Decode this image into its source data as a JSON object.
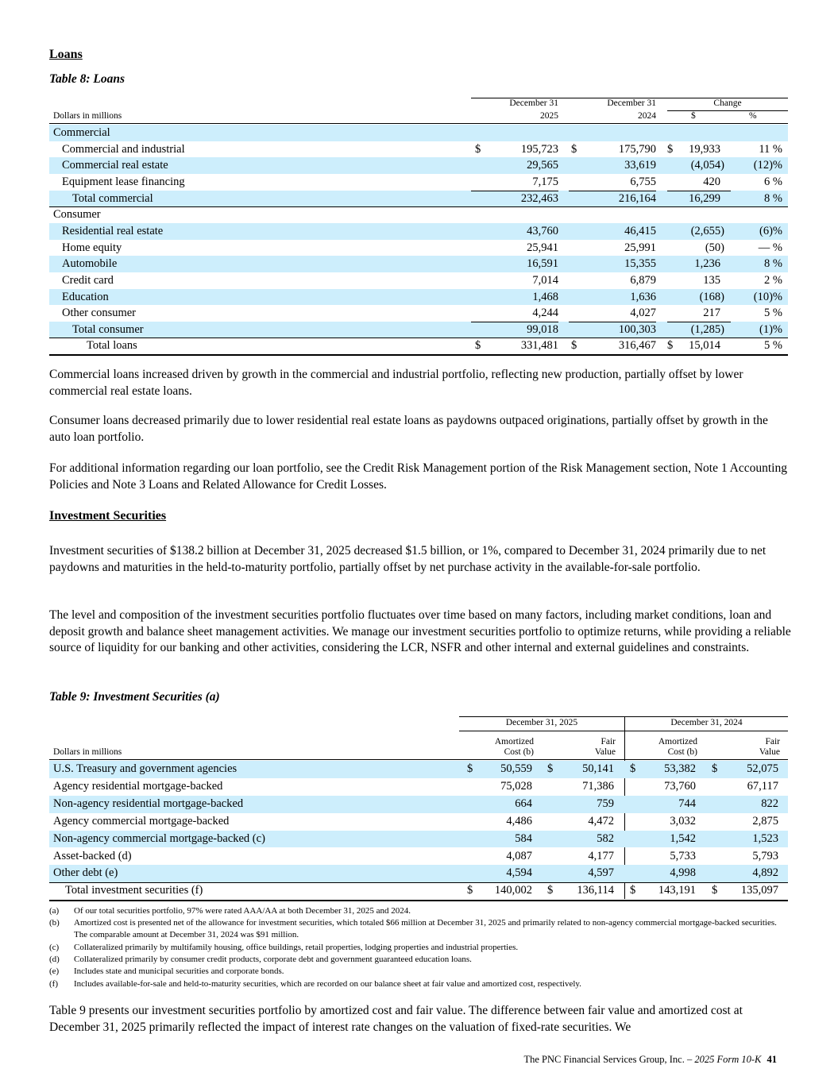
{
  "loans_heading": "Loans",
  "table8": {
    "title": "Table 8: Loans",
    "units": "Dollars in millions",
    "col_2025_top": "December 31",
    "col_2025_bottom": "2025",
    "col_2024_top": "December 31",
    "col_2024_bottom": "2024",
    "change": "Change",
    "change_dollar": "$",
    "change_pct": "%",
    "rows": [
      {
        "label": "Commercial",
        "indent": 0,
        "blue": true
      },
      {
        "label": "Commercial and industrial",
        "indent": 1,
        "d1": "$",
        "v1": "195,723",
        "d2": "$",
        "v2": "175,790",
        "d3": "$",
        "chg": "19,933",
        "pct": "11 %"
      },
      {
        "label": "Commercial real estate",
        "indent": 1,
        "blue": true,
        "v1": "29,565",
        "v2": "33,619",
        "chg": "(4,054)",
        "pct": "(12)%"
      },
      {
        "label": "Equipment lease financing",
        "indent": 1,
        "v1": "7,175",
        "v2": "6,755",
        "chg": "420",
        "pct": "6 %"
      },
      {
        "label": "Total commercial",
        "indent": 2,
        "blue": true,
        "v1": "232,463",
        "v2": "216,164",
        "chg": "16,299",
        "pct": "8 %",
        "topline": true
      },
      {
        "label": "Consumer",
        "indent": 0,
        "topline": true
      },
      {
        "label": "Residential real estate",
        "indent": 1,
        "blue": true,
        "v1": "43,760",
        "v2": "46,415",
        "chg": "(2,655)",
        "pct": "(6)%"
      },
      {
        "label": "Home equity",
        "indent": 1,
        "v1": "25,941",
        "v2": "25,991",
        "chg": "(50)",
        "pct": "— %"
      },
      {
        "label": "Automobile",
        "indent": 1,
        "blue": true,
        "v1": "16,591",
        "v2": "15,355",
        "chg": "1,236",
        "pct": "8 %"
      },
      {
        "label": "Credit card",
        "indent": 1,
        "v1": "7,014",
        "v2": "6,879",
        "chg": "135",
        "pct": "2 %"
      },
      {
        "label": "Education",
        "indent": 1,
        "blue": true,
        "v1": "1,468",
        "v2": "1,636",
        "chg": "(168)",
        "pct": "(10)%"
      },
      {
        "label": "Other consumer",
        "indent": 1,
        "v1": "4,244",
        "v2": "4,027",
        "chg": "217",
        "pct": "5 %"
      },
      {
        "label": "Total consumer",
        "indent": 2,
        "blue": true,
        "v1": "99,018",
        "v2": "100,303",
        "chg": "(1,285)",
        "pct": "(1)%",
        "topline": true
      },
      {
        "label": "Total loans",
        "indent": 3,
        "d1": "$",
        "v1": "331,481",
        "d2": "$",
        "v2": "316,467",
        "d3": "$",
        "chg": "15,014",
        "pct": "5 %",
        "topline": true,
        "bottom": true
      }
    ]
  },
  "paragraphs1": [
    "Commercial loans increased driven by growth in the commercial and industrial portfolio, reflecting new production, partially offset by lower commercial real estate loans.",
    "Consumer loans decreased primarily due to lower residential real estate loans as paydowns outpaced originations, partially offset by growth in the auto loan portfolio.",
    "For additional information regarding our loan portfolio, see the Credit Risk Management portion of the Risk Management section, Note 1 Accounting Policies and Note 3 Loans and Related Allowance for Credit Losses."
  ],
  "inv_heading": "Investment Securities",
  "paragraphs2": [
    "Investment securities of $138.2 billion at December 31, 2025 decreased $1.5 billion, or 1%, compared to December 31, 2024 primarily due to net paydowns and maturities in the held-to-maturity portfolio, partially offset by net purchase activity in the available-for-sale portfolio.",
    "The level and composition of the investment securities portfolio fluctuates over time based on many factors, including market conditions, loan and deposit growth and balance sheet management activities. We manage our investment securities portfolio to optimize returns, while providing a reliable source of liquidity for our banking and other activities, considering the LCR, NSFR and other internal and external guidelines and constraints."
  ],
  "table9": {
    "title": "Table 9: Investment Securities (a)",
    "units": "Dollars in millions",
    "group1": "December 31, 2025",
    "group2": "December 31, 2024",
    "amort1": "Amortized",
    "amort2": "Cost (b)",
    "fair1": "Fair",
    "fair2": "Value",
    "rows": [
      {
        "label": "U.S. Treasury and government agencies",
        "blue": true,
        "d": "$",
        "a1": "50,559",
        "f1": "50,141",
        "a2": "53,382",
        "f2": "52,075"
      },
      {
        "label": "Agency residential mortgage-backed",
        "a1": "75,028",
        "f1": "71,386",
        "a2": "73,760",
        "f2": "67,117"
      },
      {
        "label": "Non-agency residential mortgage-backed",
        "blue": true,
        "a1": "664",
        "f1": "759",
        "a2": "744",
        "f2": "822"
      },
      {
        "label": "Agency commercial mortgage-backed",
        "a1": "4,486",
        "f1": "4,472",
        "a2": "3,032",
        "f2": "2,875"
      },
      {
        "label": "Non-agency commercial mortgage-backed (c)",
        "blue": true,
        "a1": "584",
        "f1": "582",
        "a2": "1,542",
        "f2": "1,523"
      },
      {
        "label": "Asset-backed (d)",
        "a1": "4,087",
        "f1": "4,177",
        "a2": "5,733",
        "f2": "5,793"
      },
      {
        "label": "Other debt (e)",
        "blue": true,
        "a1": "4,594",
        "f1": "4,597",
        "a2": "4,998",
        "f2": "4,892"
      },
      {
        "label": "Total investment securities (f)",
        "total": true,
        "d": "$",
        "a1": "140,002",
        "f1": "136,114",
        "a2": "143,191",
        "f2": "135,097"
      }
    ],
    "footnotes": [
      {
        "mark": "(a)",
        "text": "Of our total securities portfolio, 97% were rated AAA/AA at both December 31, 2025 and 2024."
      },
      {
        "mark": "(b)",
        "text": "Amortized cost is presented net of the allowance for investment securities, which totaled $66 million at December 31, 2025 and primarily related to non-agency commercial mortgage-backed securities. The comparable amount at December 31, 2024 was $91 million."
      },
      {
        "mark": "(c)",
        "text": "Collateralized primarily by multifamily housing, office buildings, retail properties, lodging properties and industrial properties."
      },
      {
        "mark": "(d)",
        "text": "Collateralized primarily by consumer credit products, corporate debt and government guaranteed education loans."
      },
      {
        "mark": "(e)",
        "text": "Includes state and municipal securities and corporate bonds."
      },
      {
        "mark": "(f)",
        "text": "Includes available-for-sale and held-to-maturity securities, which are recorded on our balance sheet at fair value and amortized cost, respectively."
      }
    ]
  },
  "final_paragraph": "Table 9 presents our investment securities portfolio by amortized cost and fair value. The difference between fair value and amortized cost at December 31, 2025 primarily reflected the impact of interest rate changes on the valuation of fixed-rate securities. We",
  "footer": {
    "company": "The PNC Financial Services Group, Inc. – ",
    "form": "2025 Form 10-K",
    "page": "41"
  },
  "colors": {
    "row_highlight": "#cdeefc"
  }
}
